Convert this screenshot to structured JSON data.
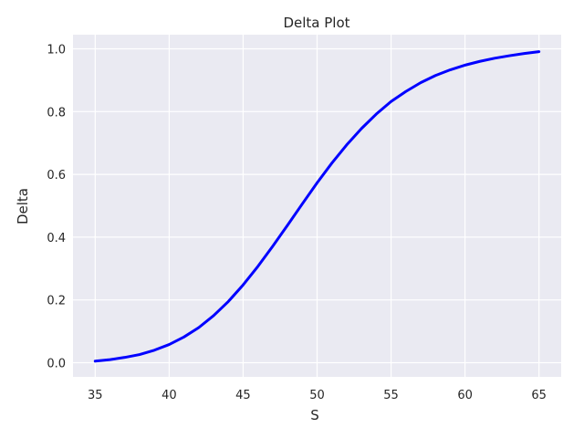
{
  "chart_data": {
    "type": "line",
    "title": "Delta Plot",
    "xlabel": "S",
    "ylabel": "Delta",
    "xlim": [
      33.5,
      66.5
    ],
    "ylim": [
      -0.045,
      1.045
    ],
    "grid": true,
    "xticks": [
      35,
      40,
      45,
      50,
      55,
      60,
      65
    ],
    "yticks": [
      0.0,
      0.2,
      0.4,
      0.6,
      0.8,
      1.0
    ],
    "xtick_labels": [
      "35",
      "40",
      "45",
      "50",
      "55",
      "60",
      "65"
    ],
    "ytick_labels": [
      "0.0",
      "0.2",
      "0.4",
      "0.6",
      "0.8",
      "1.0"
    ],
    "series": [
      {
        "color": "#0000ff",
        "x": [
          35,
          36,
          37,
          38,
          39,
          40,
          41,
          42,
          43,
          44,
          45,
          46,
          47,
          48,
          49,
          50,
          51,
          52,
          53,
          54,
          55,
          56,
          57,
          58,
          59,
          60,
          61,
          62,
          63,
          64,
          65
        ],
        "y": [
          0.005,
          0.01,
          0.017,
          0.026,
          0.04,
          0.058,
          0.082,
          0.112,
          0.15,
          0.195,
          0.248,
          0.307,
          0.371,
          0.438,
          0.506,
          0.573,
          0.636,
          0.694,
          0.746,
          0.792,
          0.832,
          0.864,
          0.892,
          0.915,
          0.933,
          0.948,
          0.96,
          0.97,
          0.978,
          0.985,
          0.991
        ]
      }
    ]
  }
}
